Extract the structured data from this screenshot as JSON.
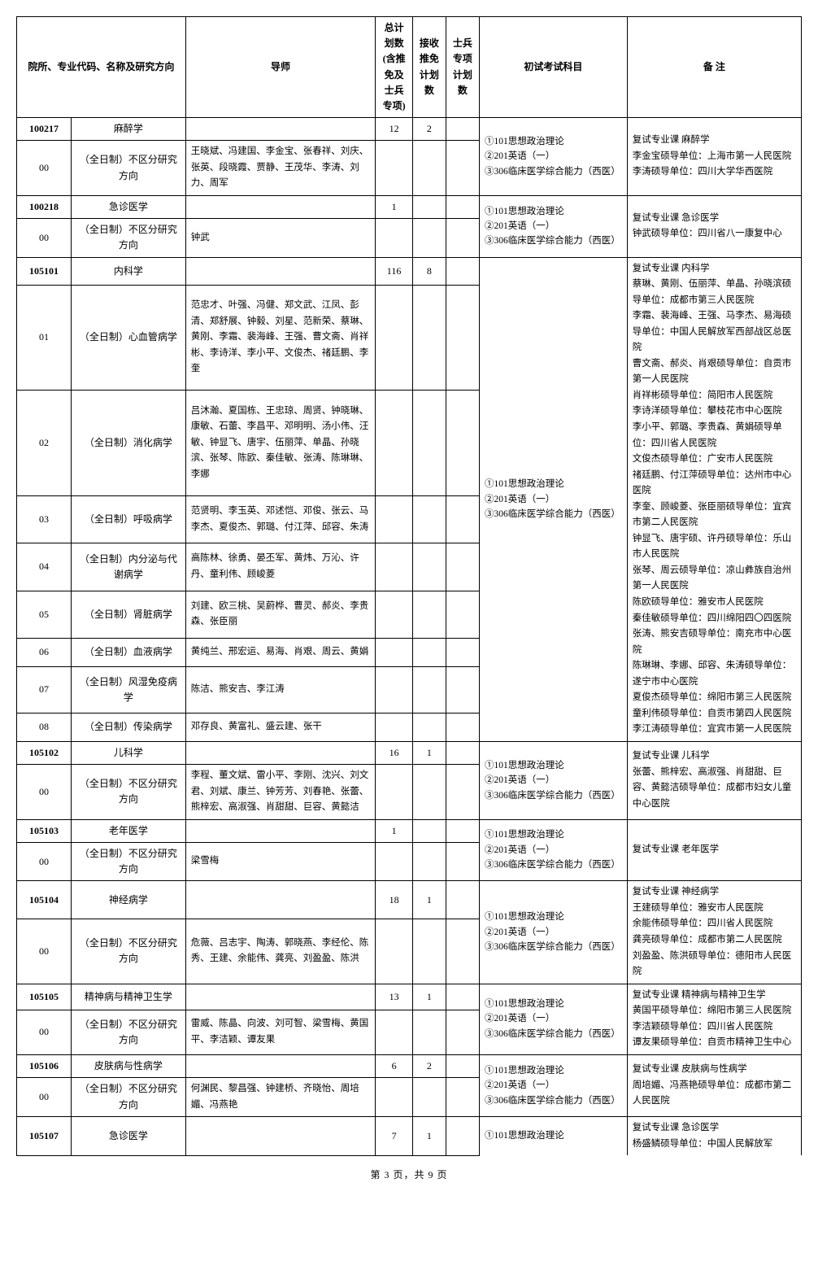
{
  "headers": {
    "col1": "院所、专业代码、名称及研究方向",
    "col2": "导师",
    "col3": "总计划数(含推免及士兵专项)",
    "col4": "接收推免计划数",
    "col5": "士兵专项计划数",
    "col6": "初试考试科目",
    "col7": "备  注"
  },
  "rows": [
    {
      "code": "100217",
      "name": "麻醉学",
      "plan": "12",
      "rec": "2",
      "bold": true
    },
    {
      "code": "00",
      "name": "（全日制）不区分研究方向",
      "teacher": "王晓斌、冯建国、李金宝、张春祥、刘庆、张英、段晓霞、贾静、王茂华、李涛、刘力、周军"
    },
    {
      "code": "100218",
      "name": "急诊医学",
      "plan": "1",
      "bold": true
    },
    {
      "code": "00",
      "name": "（全日制）不区分研究方向",
      "teacher": "钟武"
    },
    {
      "code": "105101",
      "name": "内科学",
      "plan": "116",
      "rec": "8",
      "bold": true
    },
    {
      "code": "01",
      "name": "（全日制）心血管病学",
      "teacher": "范忠才、叶强、冯健、郑文武、江凤、彭清、郑舒展、钟毅、刘星、范新荣、蔡琳、黄刚、李霜、裴海峰、王强、曹文斋、肖祥彬、李诗洋、李小平、文俊杰、禇廷鹏、李奎"
    },
    {
      "code": "02",
      "name": "（全日制）消化病学",
      "teacher": "吕沐瀚、夏国栋、王忠琼、周贤、钟晓琳、康敏、石蕾、李昌平、邓明明、汤小伟、汪敏、钟显飞、唐宇、伍丽萍、单晶、孙晓滨、张琴、陈欧、秦佳敏、张涛、陈琳琳、李娜"
    },
    {
      "code": "03",
      "name": "（全日制）呼吸病学",
      "teacher": "范贤明、李玉英、邓述恺、邓俊、张云、马李杰、夏俊杰、郭璐、付江萍、邱容、朱涛"
    },
    {
      "code": "04",
      "name": "（全日制）内分泌与代谢病学",
      "teacher": "高陈林、徐勇、晏丕军、黄炜、万沁、许丹、童利伟、顾峻菱"
    },
    {
      "code": "05",
      "name": "（全日制）肾脏病学",
      "teacher": "刘建、欧三桃、吴蔚桦、曹灵、郝炎、李贵森、张臣丽"
    },
    {
      "code": "06",
      "name": "（全日制）血液病学",
      "teacher": "黄纯兰、邢宏运、易海、肖艰、周云、黄娟"
    },
    {
      "code": "07",
      "name": "（全日制）风湿免疫病学",
      "teacher": "陈洁、熊安吉、李江涛"
    },
    {
      "code": "08",
      "name": "（全日制）传染病学",
      "teacher": "邓存良、黄富礼、盛云建、张干"
    },
    {
      "code": "105102",
      "name": "儿科学",
      "plan": "16",
      "rec": "1",
      "bold": true
    },
    {
      "code": "00",
      "name": "（全日制）不区分研究方向",
      "teacher": "李程、董文斌、雷小平、李刚、沈兴、刘文君、刘斌、康兰、钟芳芳、刘春艳、张蕾、熊梓宏、高淑强、肖甜甜、巨容、黄懿洁"
    },
    {
      "code": "105103",
      "name": "老年医学",
      "plan": "1",
      "bold": true
    },
    {
      "code": "00",
      "name": "（全日制）不区分研究方向",
      "teacher": "梁雪梅"
    },
    {
      "code": "105104",
      "name": "神经病学",
      "plan": "18",
      "rec": "1",
      "bold": true
    },
    {
      "code": "00",
      "name": "（全日制）不区分研究方向",
      "teacher": "危薇、吕志宇、陶涛、郭晓燕、李经伦、陈秀、王建、余能伟、龚亮、刘盈盈、陈洪"
    },
    {
      "code": "105105",
      "name": "精神病与精神卫生学",
      "plan": "13",
      "rec": "1",
      "bold": true
    },
    {
      "code": "00",
      "name": "（全日制）不区分研究方向",
      "teacher": "雷威、陈晶、向波、刘可智、梁雪梅、黄国平、李洁颖、谭友果"
    },
    {
      "code": "105106",
      "name": "皮肤病与性病学",
      "plan": "6",
      "rec": "2",
      "bold": true
    },
    {
      "code": "00",
      "name": "（全日制）不区分研究方向",
      "teacher": "何渊民、黎昌强、钟建桥、齐晓怡、周培媚、冯燕艳"
    },
    {
      "code": "105107",
      "name": "急诊医学",
      "plan": "7",
      "rec": "1",
      "bold": true
    }
  ],
  "exams": {
    "e1": "①101思想政治理论\n②201英语（一）\n③306临床医学综合能力（西医）",
    "e2": "①101思想政治理论\n②201英语（一）\n③306临床医学综合能力（西医）",
    "e3": "①101思想政治理论\n②201英语（一）\n③306临床医学综合能力（西医）",
    "e4": "①101思想政治理论\n②201英语（一）\n③306临床医学综合能力（西医）",
    "e5": "①101思想政治理论\n②201英语（一）\n③306临床医学综合能力（西医）",
    "e6": "①101思想政治理论\n②201英语（一）\n③306临床医学综合能力（西医）",
    "e7": "①101思想政治理论\n②201英语（一）\n③306临床医学综合能力（西医）",
    "e8": "①101思想政治理论\n②201英语（一）\n③306临床医学综合能力（西医）",
    "e9": "①101思想政治理论"
  },
  "notes": {
    "n1": "复试专业课 麻醉学\n李金宝硕导单位：上海市第一人民医院\n李涛硕导单位：四川大学华西医院",
    "n2": "复试专业课 急诊医学\n钟武硕导单位：四川省八一康复中心",
    "n3": "复试专业课 内科学\n蔡琳、黄刚、伍丽萍、单晶、孙晓滨硕导单位：成都市第三人民医院\n李霜、裴海峰、王强、马李杰、易海硕导单位：中国人民解放军西部战区总医院\n曹文斋、郝炎、肖艰硕导单位：自贡市第一人民医院\n肖祥彬硕导单位：简阳市人民医院\n李诗洋硕导单位：攀枝花市中心医院\n李小平、郭璐、李贵森、黄娟硕导单位：四川省人民医院\n文俊杰硕导单位：广安市人民医院\n禇廷鹏、付江萍硕导单位：达州市中心医院\n李奎、顾峻菱、张臣丽硕导单位：宜宾市第二人民医院\n钟显飞、唐宇硕、许丹硕导单位：乐山市人民医院\n张琴、周云硕导单位：凉山彝族自治州第一人民医院\n陈欧硕导单位：雅安市人民医院\n秦佳敏硕导单位：四川绵阳四〇四医院\n张涛、熊安吉硕导单位：南充市中心医院\n陈琳琳、李娜、邱容、朱涛硕导单位：遂宁市中心医院\n夏俊杰硕导单位：绵阳市第三人民医院\n童利伟硕导单位：自贡市第四人民医院\n李江涛硕导单位：宜宾市第一人民医院",
    "n4": "复试专业课 儿科学\n张蕾、熊梓宏、高淑强、肖甜甜、巨容、黄懿洁硕导单位：成都市妇女儿童中心医院",
    "n5": "复试专业课 老年医学",
    "n6": "复试专业课 神经病学\n王建硕导单位：雅安市人民医院\n余能伟硕导单位：四川省人民医院\n龚亮硕导单位：成都市第二人民医院\n刘盈盈、陈洪硕导单位：德阳市人民医院",
    "n7": "复试专业课 精神病与精神卫生学\n黄国平硕导单位：绵阳市第三人民医院\n李洁颖硕导单位：四川省人民医院\n谭友果硕导单位：自贡市精神卫生中心",
    "n8": "复试专业课 皮肤病与性病学\n周培媚、冯燕艳硕导单位：成都市第二人民医院",
    "n9": "复试专业课 急诊医学\n杨盛鳞硕导单位：中国人民解放军"
  },
  "footer": "第 3 页，共 9 页"
}
